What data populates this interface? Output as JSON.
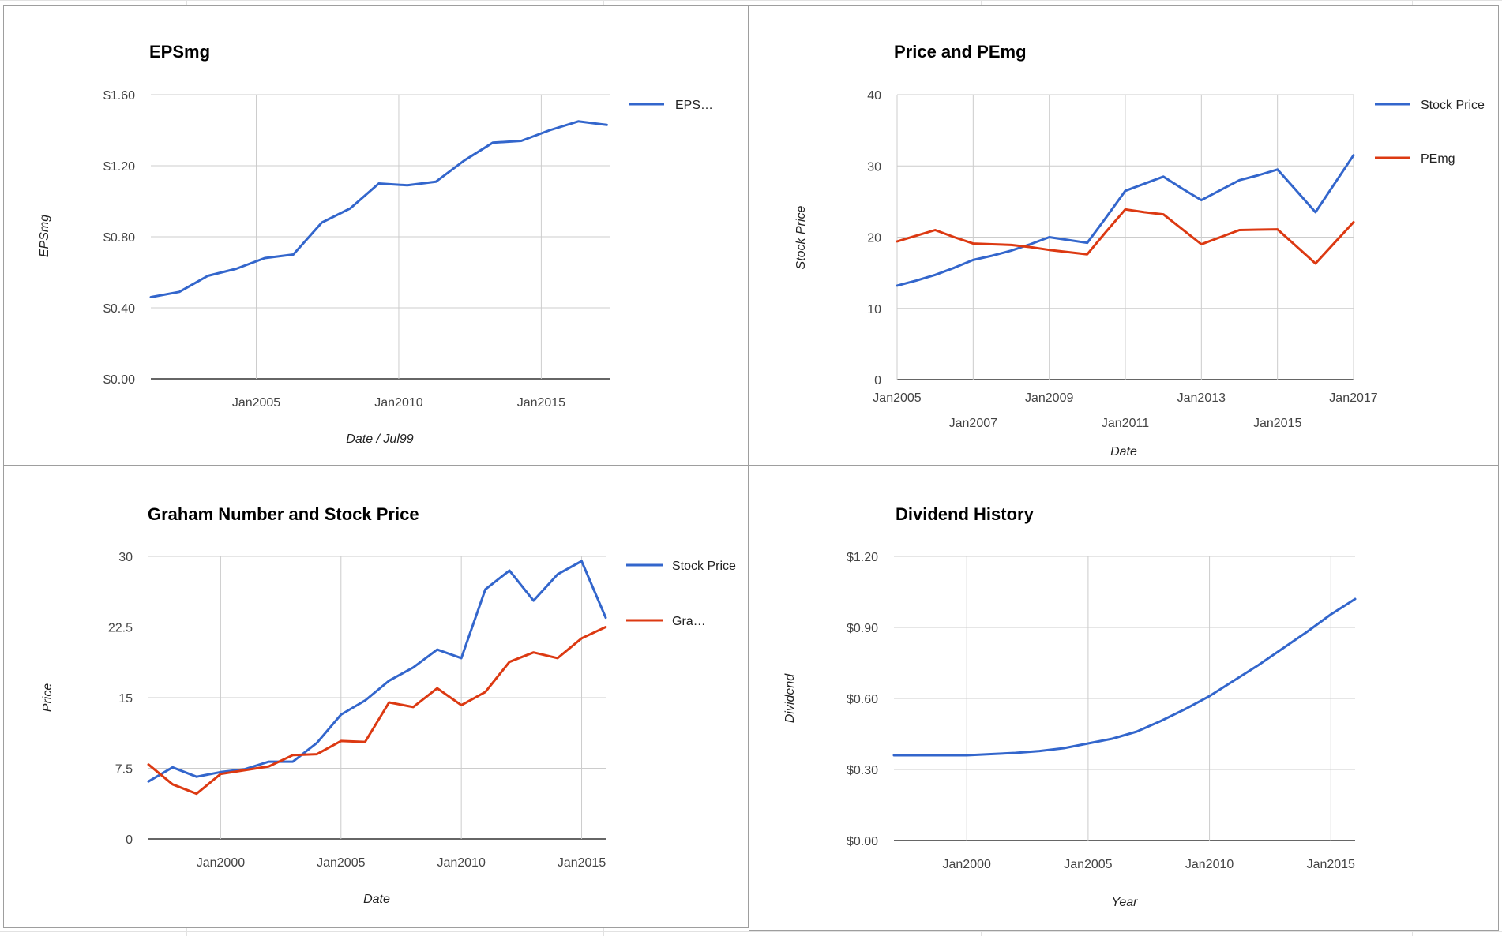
{
  "colors": {
    "blue": "#3366cc",
    "red": "#dc3912",
    "grid": "#cccccc",
    "baseline": "#333333"
  },
  "chart_data": [
    {
      "type": "line",
      "title": "EPSmg",
      "xlabel": "Date / Jul99",
      "ylabel": "EPSmg",
      "xlim": [
        2001.3,
        2017.4
      ],
      "ylim": [
        0,
        1.6
      ],
      "yticks": [
        "$0.00",
        "$0.40",
        "$0.80",
        "$1.20",
        "$1.60"
      ],
      "ytick_values": [
        0,
        0.4,
        0.8,
        1.2,
        1.6
      ],
      "xticks": [
        "Jan2005",
        "Jan2010",
        "Jan2015"
      ],
      "xtick_values": [
        2005,
        2010,
        2015
      ],
      "grid": true,
      "legend": "right",
      "series": [
        {
          "name": "EPS…",
          "color": "#3366cc",
          "x": [
            2001.3,
            2002.3,
            2003.3,
            2004.3,
            2005.3,
            2006.3,
            2007.3,
            2008.3,
            2009.3,
            2010.3,
            2011.3,
            2012.3,
            2013.3,
            2014.3,
            2015.3,
            2016.3,
            2017.3
          ],
          "y": [
            0.46,
            0.49,
            0.58,
            0.62,
            0.68,
            0.7,
            0.88,
            0.96,
            1.1,
            1.09,
            1.11,
            1.23,
            1.33,
            1.34,
            1.4,
            1.45,
            1.43
          ]
        }
      ]
    },
    {
      "type": "line",
      "title": "Price and PEmg",
      "xlabel": "Date",
      "ylabel": "Stock Price",
      "xlim": [
        2005,
        2017
      ],
      "ylim": [
        0,
        40
      ],
      "yticks": [
        "0",
        "10",
        "20",
        "30",
        "40"
      ],
      "ytick_values": [
        0,
        10,
        20,
        30,
        40
      ],
      "xticks_row1": [
        "Jan2005",
        "Jan2009",
        "Jan2013",
        "Jan2017"
      ],
      "xtick_values_row1": [
        2005,
        2009,
        2013,
        2017
      ],
      "xticks_row2": [
        "Jan2007",
        "Jan2011",
        "Jan2015"
      ],
      "xtick_values_row2": [
        2007,
        2011,
        2015
      ],
      "grid": true,
      "legend": "right",
      "series": [
        {
          "name": "Stock Price",
          "color": "#3366cc",
          "x": [
            2005,
            2005.5,
            2006,
            2006.5,
            2007,
            2007.5,
            2008,
            2008.5,
            2009,
            2009.5,
            2010,
            2010.5,
            2011,
            2011.5,
            2012,
            2012.5,
            2013,
            2013.5,
            2014,
            2014.5,
            2015,
            2015.5,
            2016,
            2016.5,
            2017
          ],
          "y": [
            13.2,
            13.9,
            14.7,
            15.7,
            16.8,
            17.4,
            18.1,
            19.0,
            20.0,
            19.6,
            19.2,
            22.8,
            26.5,
            27.5,
            28.5,
            26.8,
            25.2,
            26.6,
            28.0,
            28.7,
            29.5,
            26.5,
            23.5,
            27.5,
            31.5
          ]
        },
        {
          "name": "PEmg",
          "color": "#dc3912",
          "x": [
            2005,
            2005.5,
            2006,
            2006.5,
            2007,
            2007.5,
            2008,
            2008.5,
            2009,
            2009.5,
            2010,
            2010.5,
            2011,
            2011.5,
            2012,
            2012.5,
            2013,
            2013.5,
            2014,
            2014.5,
            2015,
            2015.5,
            2016,
            2016.5,
            2017
          ],
          "y": [
            19.4,
            20.2,
            21.0,
            20.0,
            19.1,
            19.0,
            18.9,
            18.6,
            18.2,
            17.9,
            17.6,
            20.8,
            23.9,
            23.5,
            23.2,
            21.1,
            19.0,
            20.0,
            21.0,
            21.05,
            21.1,
            18.7,
            16.3,
            19.2,
            22.1
          ]
        }
      ]
    },
    {
      "type": "line",
      "title": "Graham Number and Stock Price",
      "xlabel": "Date",
      "ylabel": "Price",
      "xlim": [
        1997,
        2016
      ],
      "ylim": [
        0,
        30
      ],
      "yticks": [
        "0",
        "7.5",
        "15",
        "22.5",
        "30"
      ],
      "ytick_values": [
        0,
        7.5,
        15,
        22.5,
        30
      ],
      "xticks": [
        "Jan2000",
        "Jan2005",
        "Jan2010",
        "Jan2015"
      ],
      "xtick_values": [
        2000,
        2005,
        2010,
        2015
      ],
      "grid": true,
      "legend": "right",
      "series": [
        {
          "name": "Stock Price",
          "color": "#3366cc",
          "x": [
            1997,
            1998,
            1999,
            2000,
            2001,
            2002,
            2003,
            2004,
            2005,
            2006,
            2007,
            2008,
            2009,
            2010,
            2011,
            2012,
            2013,
            2014,
            2015,
            2016
          ],
          "y": [
            6.1,
            7.6,
            6.6,
            7.1,
            7.4,
            8.2,
            8.2,
            10.2,
            13.2,
            14.7,
            16.8,
            18.2,
            20.1,
            19.2,
            26.5,
            28.5,
            25.3,
            28.1,
            29.5,
            23.5
          ]
        },
        {
          "name": "Gra…",
          "color": "#dc3912",
          "x": [
            1997,
            1998,
            1999,
            2000,
            2001,
            2002,
            2003,
            2004,
            2005,
            2006,
            2007,
            2008,
            2009,
            2010,
            2011,
            2012,
            2013,
            2014,
            2015,
            2016
          ],
          "y": [
            7.9,
            5.8,
            4.8,
            6.9,
            7.3,
            7.7,
            8.9,
            9.0,
            10.4,
            10.3,
            14.5,
            14.0,
            16.0,
            14.2,
            15.6,
            18.8,
            19.8,
            19.2,
            21.3,
            22.5
          ]
        }
      ]
    },
    {
      "type": "line",
      "title": "Dividend History",
      "xlabel": "Year",
      "ylabel": "Dividend",
      "xlim": [
        1997,
        2016
      ],
      "ylim": [
        0,
        1.2
      ],
      "yticks": [
        "$0.00",
        "$0.30",
        "$0.60",
        "$0.90",
        "$1.20"
      ],
      "ytick_values": [
        0,
        0.3,
        0.6,
        0.9,
        1.2
      ],
      "xticks": [
        "Jan2000",
        "Jan2005",
        "Jan2010",
        "Jan2015"
      ],
      "xtick_values": [
        2000,
        2005,
        2010,
        2015
      ],
      "grid": true,
      "legend": "none",
      "series": [
        {
          "color": "#3366cc",
          "x": [
            1997,
            1998,
            1999,
            2000,
            2001,
            2002,
            2003,
            2004,
            2005,
            2006,
            2007,
            2008,
            2009,
            2010,
            2011,
            2012,
            2013,
            2014,
            2015,
            2016
          ],
          "y": [
            0.36,
            0.36,
            0.36,
            0.36,
            0.365,
            0.37,
            0.378,
            0.39,
            0.41,
            0.43,
            0.46,
            0.505,
            0.555,
            0.61,
            0.675,
            0.74,
            0.81,
            0.88,
            0.955,
            1.02
          ]
        }
      ]
    }
  ]
}
